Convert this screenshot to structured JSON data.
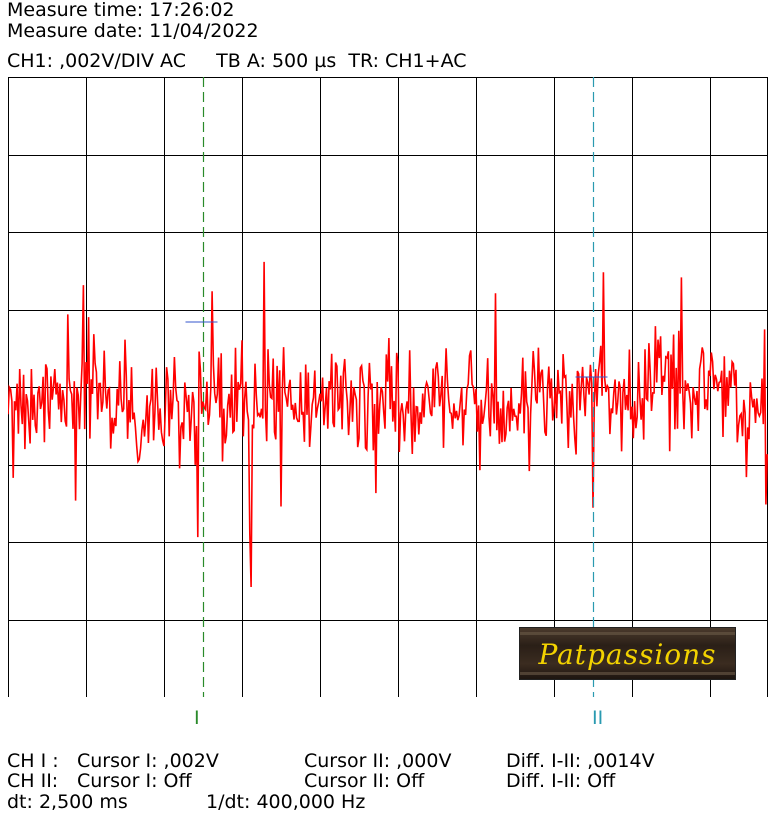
{
  "header": {
    "measure_time": "Measure time: 17:26:02",
    "measure_date": "Measure date: 11/04/2022",
    "settings": "CH1: ,002V/DIV AC     TB A: 500 µs  TR: CH1+AC"
  },
  "scope": {
    "grid_divisions": {
      "x": 10,
      "y": 8
    },
    "trace_color": "#ff0000",
    "grid_color": "#000000",
    "cursor_1_color": "#2a8a2a",
    "cursor_2_color": "#2a9ab0",
    "cursor_1_position_div": 2.5,
    "cursor_2_position_div": 7.5,
    "cursor_1_label": "I",
    "cursor_2_label": "II"
  },
  "logo": {
    "text": "Patpassions"
  },
  "footer": {
    "ch1_label": "CH I :",
    "ch1_cursor1": "Cursor I: ,002V",
    "ch1_cursor2": "Cursor II: ,000V",
    "ch1_diff": "Diff. I-II: ,0014V",
    "ch2_label": "CH II:",
    "ch2_cursor1": "Cursor I: Off",
    "ch2_cursor2": "Cursor II: Off",
    "ch2_diff": "Diff. I-II: Off",
    "dt": "dt: 2,500 ms",
    "inv_dt": "1/dt: 400,000 Hz"
  }
}
